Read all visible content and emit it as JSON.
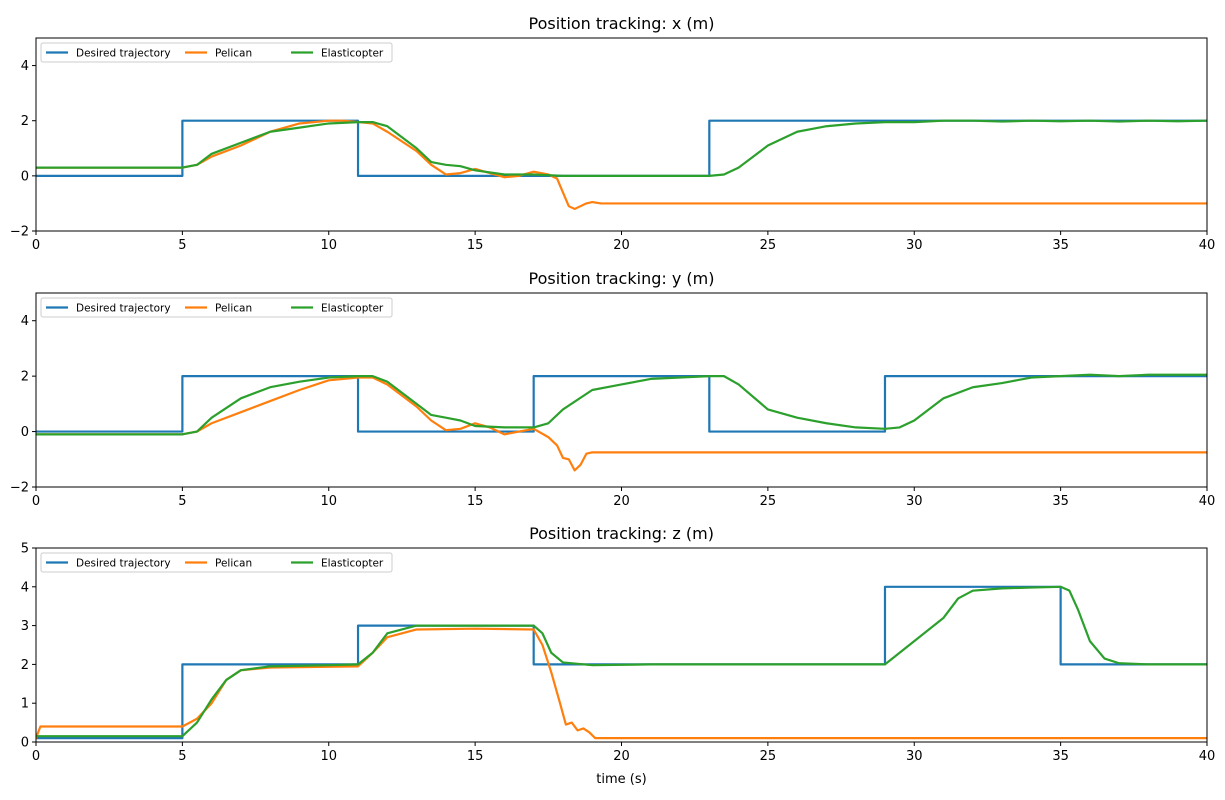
{
  "chart_data": [
    {
      "type": "line",
      "title": "Position tracking: x (m)",
      "xlabel": "",
      "ylabel": "",
      "xlim": [
        0,
        40
      ],
      "ylim": [
        -2,
        5
      ],
      "xticks": [
        0,
        5,
        10,
        15,
        20,
        25,
        30,
        35,
        40
      ],
      "yticks": [
        -2,
        0,
        2,
        4
      ],
      "grid": false,
      "legend": "top-left",
      "series": [
        {
          "name": "Desired trajectory",
          "color": "#1f77b4",
          "step": true,
          "x": [
            0,
            5,
            5,
            11,
            11,
            23,
            23,
            40
          ],
          "y": [
            0,
            0,
            2,
            2,
            0,
            0,
            2,
            2
          ]
        },
        {
          "name": "Pelican",
          "color": "#ff7f0e",
          "step": false,
          "x": [
            0,
            5,
            5.5,
            6,
            7,
            8,
            9,
            10,
            10.5,
            11,
            11.5,
            12,
            13,
            13.5,
            14,
            14.5,
            15,
            15.5,
            16,
            16.5,
            17,
            17.5,
            17.8,
            18,
            18.2,
            18.4,
            18.6,
            18.8,
            19,
            19.3,
            19.6,
            20,
            40
          ],
          "y": [
            0.3,
            0.3,
            0.4,
            0.7,
            1.1,
            1.6,
            1.9,
            2.0,
            2.0,
            1.95,
            1.9,
            1.6,
            0.9,
            0.4,
            0.05,
            0.1,
            0.25,
            0.1,
            -0.05,
            0.0,
            0.15,
            0.05,
            -0.1,
            -0.6,
            -1.1,
            -1.2,
            -1.1,
            -1.0,
            -0.95,
            -1.0,
            -1.0,
            -1.0,
            -1.0
          ]
        },
        {
          "name": "Elasticopter",
          "color": "#2ca02c",
          "step": false,
          "x": [
            0,
            5,
            5.5,
            6,
            7,
            8,
            9,
            10,
            11,
            11.5,
            12,
            13,
            13.5,
            14,
            14.5,
            15,
            16,
            17,
            18,
            19,
            20,
            21,
            22,
            23,
            23.5,
            24,
            25,
            26,
            27,
            28,
            29,
            30,
            31,
            32,
            33,
            34,
            35,
            36,
            37,
            38,
            39,
            40
          ],
          "y": [
            0.3,
            0.3,
            0.4,
            0.8,
            1.2,
            1.6,
            1.75,
            1.9,
            1.95,
            1.95,
            1.8,
            1.0,
            0.5,
            0.4,
            0.35,
            0.2,
            0.05,
            0.05,
            0.0,
            0.0,
            0.0,
            0.0,
            0.0,
            0.0,
            0.05,
            0.3,
            1.1,
            1.6,
            1.8,
            1.9,
            1.95,
            1.95,
            2.0,
            2.0,
            1.97,
            2.0,
            1.98,
            2.0,
            1.97,
            2.0,
            1.98,
            2.0
          ]
        }
      ]
    },
    {
      "type": "line",
      "title": "Position tracking: y (m)",
      "xlabel": "",
      "ylabel": "",
      "xlim": [
        0,
        40
      ],
      "ylim": [
        -2,
        5
      ],
      "xticks": [
        0,
        5,
        10,
        15,
        20,
        25,
        30,
        35,
        40
      ],
      "yticks": [
        -2,
        0,
        2,
        4
      ],
      "grid": false,
      "legend": "top-left",
      "series": [
        {
          "name": "Desired trajectory",
          "color": "#1f77b4",
          "step": true,
          "x": [
            0,
            5,
            5,
            11,
            11,
            17,
            17,
            23,
            23,
            29,
            29,
            40
          ],
          "y": [
            0,
            0,
            2,
            2,
            0,
            0,
            2,
            2,
            0,
            0,
            2,
            2
          ]
        },
        {
          "name": "Pelican",
          "color": "#ff7f0e",
          "step": false,
          "x": [
            0,
            5,
            5.5,
            6,
            7,
            8,
            9,
            10,
            11,
            11.5,
            12,
            13,
            13.5,
            14,
            14.5,
            15,
            15.5,
            16,
            16.5,
            17,
            17.5,
            17.8,
            18,
            18.2,
            18.4,
            18.6,
            18.8,
            19,
            19.5,
            20,
            40
          ],
          "y": [
            -0.1,
            -0.1,
            0.0,
            0.3,
            0.7,
            1.1,
            1.5,
            1.85,
            1.95,
            1.95,
            1.7,
            0.9,
            0.4,
            0.05,
            0.1,
            0.3,
            0.15,
            -0.1,
            0.0,
            0.1,
            -0.2,
            -0.5,
            -0.95,
            -1.0,
            -1.4,
            -1.2,
            -0.8,
            -0.75,
            -0.75,
            -0.75,
            -0.75
          ]
        },
        {
          "name": "Elasticopter",
          "color": "#2ca02c",
          "step": false,
          "x": [
            0,
            5,
            5.5,
            6,
            7,
            8,
            9,
            10,
            11,
            11.5,
            12,
            13,
            13.5,
            14,
            14.5,
            15,
            16,
            17,
            17.5,
            18,
            19,
            20,
            21,
            22,
            23,
            23.5,
            24,
            25,
            26,
            27,
            28,
            29,
            29.5,
            30,
            31,
            32,
            33,
            34,
            35,
            36,
            37,
            38,
            39,
            40
          ],
          "y": [
            -0.1,
            -0.1,
            0.0,
            0.5,
            1.2,
            1.6,
            1.8,
            1.95,
            2.0,
            2.0,
            1.8,
            1.0,
            0.6,
            0.5,
            0.4,
            0.2,
            0.15,
            0.15,
            0.3,
            0.8,
            1.5,
            1.7,
            1.9,
            1.95,
            2.0,
            2.0,
            1.7,
            0.8,
            0.5,
            0.3,
            0.15,
            0.1,
            0.15,
            0.4,
            1.2,
            1.6,
            1.75,
            1.95,
            2.0,
            2.05,
            2.0,
            2.05,
            2.05,
            2.05
          ]
        }
      ]
    },
    {
      "type": "line",
      "title": "Position tracking: z (m)",
      "xlabel": "time (s)",
      "ylabel": "",
      "xlim": [
        0,
        40
      ],
      "ylim": [
        0,
        5
      ],
      "xticks": [
        0,
        5,
        10,
        15,
        20,
        25,
        30,
        35,
        40
      ],
      "yticks": [
        0,
        1,
        2,
        3,
        4,
        5
      ],
      "grid": false,
      "legend": "top-left",
      "series": [
        {
          "name": "Desired trajectory",
          "color": "#1f77b4",
          "step": true,
          "x": [
            0,
            5,
            5,
            11,
            11,
            17,
            17,
            29,
            29,
            35,
            35,
            40
          ],
          "y": [
            0.1,
            0.1,
            2,
            2,
            3,
            3,
            2,
            2,
            4,
            4,
            2,
            2
          ]
        },
        {
          "name": "Pelican",
          "color": "#ff7f0e",
          "step": false,
          "x": [
            0,
            0.15,
            5,
            5.5,
            6,
            6.5,
            7,
            8,
            11,
            11.5,
            12,
            13,
            15,
            17,
            17.3,
            17.6,
            17.9,
            18.1,
            18.3,
            18.5,
            18.7,
            18.9,
            19.1,
            19.5,
            20,
            40
          ],
          "y": [
            0.1,
            0.4,
            0.4,
            0.6,
            1.0,
            1.6,
            1.85,
            1.92,
            1.95,
            2.3,
            2.7,
            2.9,
            2.92,
            2.9,
            2.5,
            1.8,
            1.0,
            0.45,
            0.5,
            0.3,
            0.35,
            0.25,
            0.1,
            0.1,
            0.1,
            0.1
          ]
        },
        {
          "name": "Elasticopter",
          "color": "#2ca02c",
          "step": false,
          "x": [
            0,
            5,
            5.5,
            6,
            6.5,
            7,
            8,
            10,
            11,
            11.5,
            12,
            13,
            15,
            17,
            17.3,
            17.6,
            18,
            19,
            21,
            25,
            29,
            29.5,
            30,
            31,
            31.5,
            32,
            33,
            34,
            35,
            35.3,
            35.6,
            36,
            36.5,
            37,
            38,
            40
          ],
          "y": [
            0.15,
            0.15,
            0.5,
            1.1,
            1.6,
            1.85,
            1.95,
            1.98,
            2.0,
            2.3,
            2.8,
            3.0,
            3.0,
            3.0,
            2.8,
            2.3,
            2.05,
            1.98,
            2.0,
            2.0,
            2.0,
            2.3,
            2.6,
            3.2,
            3.7,
            3.9,
            3.96,
            3.98,
            4.0,
            3.9,
            3.4,
            2.6,
            2.15,
            2.03,
            2.0,
            2.0
          ]
        }
      ]
    }
  ]
}
